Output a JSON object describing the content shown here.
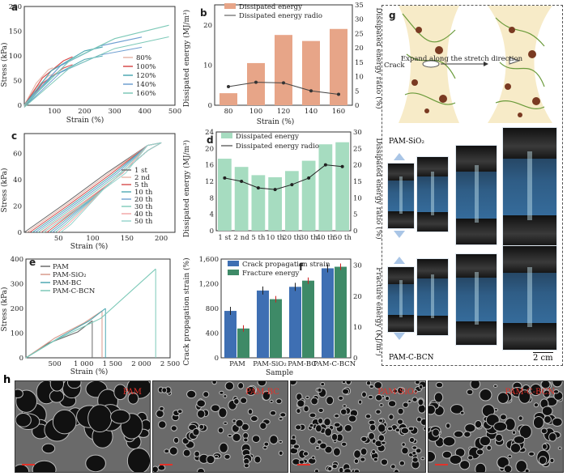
{
  "colors": {
    "series": [
      "#6a6a6a",
      "#e6b6a8",
      "#d74c4c",
      "#4fa9b3",
      "#6f9fd1",
      "#7dc9b8",
      "#f2a2a2",
      "#94d3cb"
    ],
    "bar_orange": "#e7a588",
    "bar_green": "#a6dcc0",
    "bar_blue": "#3e6fb3",
    "bar_darkgreen": "#3e8a67"
  },
  "panel_a": {
    "label": "a",
    "xlabel": "Strain (%)",
    "ylabel": "Stress (kPa)",
    "legend": [
      "80%",
      "100%",
      "120%",
      "140%",
      "160%"
    ],
    "chart_data": {
      "type": "line",
      "xlim": [
        0,
        500
      ],
      "ylim": [
        0,
        200
      ],
      "xticks": [
        "100",
        "200",
        "300",
        "400",
        "500"
      ],
      "yticks": [
        "0",
        "50",
        "100",
        "150",
        "200"
      ],
      "series": [
        {
          "name": "80%",
          "points": [
            [
              0,
              0
            ],
            [
              40,
              45
            ],
            [
              80,
              72
            ],
            [
              95,
              76
            ]
          ]
        },
        {
          "name": "100%",
          "points": [
            [
              0,
              0
            ],
            [
              60,
              55
            ],
            [
              130,
              90
            ],
            [
              160,
              98
            ]
          ]
        },
        {
          "name": "120%",
          "points": [
            [
              0,
              0
            ],
            [
              90,
              70
            ],
            [
              200,
              110
            ],
            [
              260,
              118
            ]
          ]
        },
        {
          "name": "140%",
          "points": [
            [
              0,
              0
            ],
            [
              120,
              80
            ],
            [
              250,
              120
            ],
            [
              390,
              138
            ]
          ]
        },
        {
          "name": "160%",
          "points": [
            [
              0,
              0
            ],
            [
              150,
              90
            ],
            [
              300,
              135
            ],
            [
              480,
              162
            ]
          ]
        }
      ]
    }
  },
  "panel_b": {
    "label": "b",
    "xlabel": "Strain (%)",
    "ylabel": "Dissipated energy (MJ/m³)",
    "ylabel2": "Dissipated energy ratio (%)",
    "legend": [
      "Dissipated energy",
      "Dissipated energy radio"
    ],
    "chart_data": {
      "type": "bar",
      "categories": [
        "80",
        "100",
        "120",
        "140",
        "160"
      ],
      "values": [
        3,
        10.5,
        17.5,
        16,
        19
      ],
      "ylim": [
        0,
        25
      ],
      "yticks": [
        "0",
        "10",
        "20"
      ],
      "ratio": [
        6.5,
        8,
        7.8,
        5,
        3.8
      ],
      "ylim2": [
        0,
        35
      ],
      "yticks2": [
        "0",
        "5",
        "10",
        "15",
        "20",
        "25",
        "30",
        "35"
      ]
    }
  },
  "panel_c": {
    "label": "c",
    "xlabel": "Strain (%)",
    "ylabel": "Stress (kPa)",
    "legend": [
      "1 st",
      "2 nd",
      "5 th",
      "10 th",
      "20 th",
      "30 th",
      "40 th",
      "50 th"
    ],
    "chart_data": {
      "type": "line",
      "xlim": [
        0,
        220
      ],
      "ylim": [
        0,
        75
      ],
      "xticks": [
        "50",
        "100",
        "150",
        "200"
      ],
      "yticks": [
        "0",
        "20",
        "40",
        "60"
      ],
      "series": [
        {
          "name": "1 st",
          "offset": 0
        },
        {
          "name": "2 nd",
          "offset": 4
        },
        {
          "name": "5 th",
          "offset": 8
        },
        {
          "name": "10 th",
          "offset": 12
        },
        {
          "name": "20 th",
          "offset": 16
        },
        {
          "name": "30 th",
          "offset": 20
        },
        {
          "name": "40 th",
          "offset": 24
        },
        {
          "name": "50 th",
          "offset": 28
        }
      ]
    }
  },
  "panel_d": {
    "label": "d",
    "ylabel": "Dissipated energy (MJ/m³)",
    "ylabel2": "Dissipated energy ratio (%)",
    "legend": [
      "Dissipated energy",
      "Dissipated energy radio"
    ],
    "chart_data": {
      "type": "bar",
      "categories": [
        "1 st",
        "2 nd",
        "5 th",
        "10 th",
        "20 th",
        "30 th",
        "40 th",
        "50 th"
      ],
      "values": [
        17.5,
        15.5,
        13.5,
        13,
        14.5,
        17,
        21,
        21.5
      ],
      "ylim": [
        0,
        24
      ],
      "yticks": [
        "0",
        "4",
        "8",
        "12",
        "16",
        "20",
        "24"
      ],
      "ratio": [
        16,
        15,
        13,
        12.5,
        14,
        16,
        20,
        19.5
      ],
      "ylim2": [
        0,
        30
      ],
      "yticks2": [
        "0",
        "5",
        "10",
        "15",
        "20",
        "25",
        "30"
      ]
    }
  },
  "panel_e": {
    "label": "e",
    "xlabel": "Strain (%)",
    "ylabel": "Stress (kPa)",
    "legend": [
      "PAM",
      "PAM-SiO₂",
      "PAM-BC",
      "PAM-C-BCN"
    ],
    "chart_data": {
      "type": "line",
      "xlim": [
        0,
        2500
      ],
      "ylim": [
        0,
        400
      ],
      "xticks": [
        "500",
        "1 000",
        "1 500",
        "2 000",
        "2 500"
      ],
      "yticks": [
        "0",
        "100",
        "200",
        "300",
        "400"
      ],
      "series": [
        {
          "name": "PAM",
          "points": [
            [
              0,
              0
            ],
            [
              400,
              60
            ],
            [
              900,
              105
            ],
            [
              1150,
              150
            ]
          ],
          "break": 1150
        },
        {
          "name": "PAM-SiO₂",
          "points": [
            [
              0,
              0
            ],
            [
              500,
              80
            ],
            [
              1000,
              140
            ],
            [
              1320,
              190
            ]
          ],
          "break": 1320
        },
        {
          "name": "PAM-BC",
          "points": [
            [
              0,
              0
            ],
            [
              600,
              85
            ],
            [
              1100,
              150
            ],
            [
              1380,
              200
            ]
          ],
          "break": 1380
        },
        {
          "name": "PAM-C-BCN",
          "points": [
            [
              0,
              0
            ],
            [
              500,
              70
            ],
            [
              1300,
              160
            ],
            [
              2250,
              360
            ]
          ],
          "break": 2250
        }
      ]
    }
  },
  "panel_f": {
    "label": "f",
    "xlabel": "Sample",
    "ylabel": "Crack propagation strain (%)",
    "ylabel2": "Fracture energy (KJ/m²)",
    "legend": [
      "Crack propagation strain",
      "Fracture energy"
    ],
    "chart_data": {
      "type": "bar",
      "categories": [
        "PAM",
        "PAM-SiO₂",
        "PAM-BC",
        "PAM-C-BCN"
      ],
      "strain": [
        760,
        1090,
        1150,
        1450
      ],
      "fracture": [
        9.5,
        19,
        25,
        29.5
      ],
      "ylim": [
        0,
        1600
      ],
      "yticks": [
        "0",
        "400",
        "800",
        "1,200",
        "1,600"
      ],
      "ylim2": [
        0,
        32
      ],
      "yticks2": [
        "0",
        "10",
        "20",
        "30"
      ]
    }
  },
  "panel_g": {
    "label": "g",
    "crack": "Crack",
    "expand": "Expand along the stretch direction",
    "sio2": "PAM-SiO₂",
    "cbcn": "PAM-C-BCN",
    "scale": "2 cm"
  },
  "panel_h": {
    "label": "h",
    "images": [
      "PAM",
      "PAM-BC",
      "PAM-SiO₂",
      "PAM-C-BCN"
    ]
  }
}
